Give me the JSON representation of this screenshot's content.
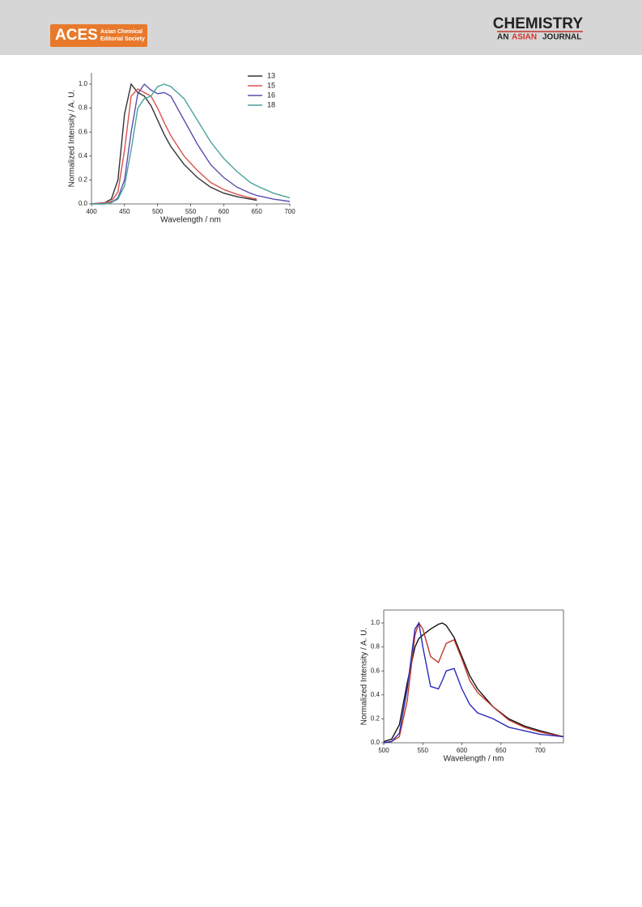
{
  "header": {
    "logo": "ACES",
    "logo_line1": "Asian Chemical",
    "logo_line2": "Editorial Society",
    "journal": "CHEMISTRY",
    "journal_parts": [
      "AN",
      "ASIAN",
      "JOURNAL"
    ]
  },
  "chart_data": [
    {
      "type": "line",
      "x_label": "Wavelength / nm",
      "y_label": "Normalized Intensity / A. U.",
      "x": [
        400,
        420,
        430,
        440,
        450,
        460,
        470,
        480,
        490,
        500,
        510,
        520,
        540,
        560,
        580,
        600,
        620,
        640,
        650,
        675,
        700
      ],
      "series": [
        {
          "name": "13",
          "color": "#333333",
          "values": [
            0,
            0.01,
            0.04,
            0.2,
            0.75,
            1.0,
            0.93,
            0.9,
            0.82,
            0.7,
            0.58,
            0.48,
            0.33,
            0.22,
            0.14,
            0.09,
            0.06,
            0.04,
            0.03,
            null,
            null
          ]
        },
        {
          "name": "15",
          "color": "#d9534f",
          "values": [
            0,
            0.01,
            0.02,
            0.1,
            0.45,
            0.9,
            0.96,
            0.93,
            0.9,
            0.8,
            0.68,
            0.57,
            0.4,
            0.28,
            0.18,
            0.12,
            0.08,
            0.05,
            0.04,
            null,
            null
          ]
        },
        {
          "name": "16",
          "color": "#5a4fb0",
          "values": [
            0,
            0,
            0.01,
            0.05,
            0.2,
            0.6,
            0.92,
            1.0,
            0.95,
            0.92,
            0.93,
            0.9,
            0.7,
            0.5,
            0.33,
            0.22,
            0.14,
            0.09,
            0.07,
            0.04,
            0.02
          ]
        },
        {
          "name": "18",
          "color": "#4aa39a",
          "values": [
            0,
            0,
            0.01,
            0.04,
            0.15,
            0.45,
            0.8,
            0.88,
            0.9,
            0.98,
            1.0,
            0.98,
            0.88,
            0.7,
            0.52,
            0.38,
            0.27,
            0.18,
            0.15,
            0.09,
            0.05
          ]
        }
      ],
      "xlim": [
        400,
        700
      ],
      "xticks": [
        400,
        450,
        500,
        550,
        600,
        650,
        700
      ],
      "ylim": [
        0,
        1
      ],
      "yticks": [
        {
          "value": 0,
          "label": "0.0"
        },
        0.2,
        0.4,
        0.6,
        0.8,
        {
          "value": 1,
          "label": "1.0"
        }
      ],
      "legend": "top-right"
    },
    {
      "type": "line",
      "x_label": "Wavelength / nm",
      "y_label": "Normalized Intensity / A. U.",
      "x": [
        500,
        510,
        520,
        530,
        540,
        545,
        550,
        560,
        570,
        575,
        580,
        590,
        600,
        610,
        620,
        640,
        660,
        680,
        700,
        730
      ],
      "series": [
        {
          "color": "#111111",
          "values": [
            0.01,
            0.03,
            0.15,
            0.5,
            0.8,
            0.87,
            0.9,
            0.95,
            0.99,
            1.0,
            0.98,
            0.88,
            0.72,
            0.56,
            0.45,
            0.3,
            0.2,
            0.14,
            0.1,
            0.05
          ]
        },
        {
          "color": "#c0392b",
          "values": [
            0,
            0.01,
            0.05,
            0.35,
            0.9,
            1.0,
            0.95,
            0.72,
            0.67,
            0.75,
            0.83,
            0.86,
            0.7,
            0.52,
            0.42,
            0.3,
            0.19,
            0.13,
            0.09,
            0.05
          ]
        },
        {
          "color": "#2a2ab8",
          "values": [
            0,
            0.01,
            0.08,
            0.45,
            0.95,
            1.0,
            0.8,
            0.47,
            0.45,
            0.52,
            0.6,
            0.62,
            0.45,
            0.32,
            0.25,
            0.2,
            0.13,
            0.1,
            0.07,
            0.05
          ]
        }
      ],
      "xlim": [
        500,
        730
      ],
      "xticks": [
        500,
        550,
        600,
        650,
        700
      ],
      "ylim": [
        0,
        1
      ],
      "yticks": [
        {
          "value": 0,
          "label": "0.0"
        },
        0.2,
        0.4,
        0.6,
        0.8,
        {
          "value": 1,
          "label": "1.0"
        }
      ]
    }
  ]
}
